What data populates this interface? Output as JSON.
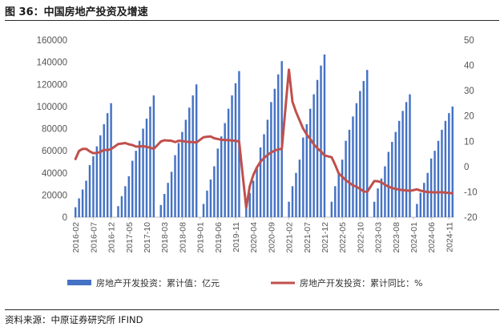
{
  "header": {
    "title": "图 36：中国房地产投资及增速"
  },
  "footer": {
    "source": "资料来源：中原证券研究所 IFIND"
  },
  "colors": {
    "bar": "#4472c4",
    "line": "#c0504d",
    "axis": "#bfbfbf",
    "text": "#595959"
  },
  "chart_data": {
    "type": "bar",
    "title": "中国房地产投资及增速",
    "y_left": {
      "min": 0,
      "max": 160000,
      "ticks": [
        0,
        20000,
        40000,
        60000,
        80000,
        100000,
        120000,
        140000,
        160000
      ]
    },
    "y_right": {
      "min": -20,
      "max": 50,
      "ticks": [
        -20,
        -10,
        0,
        10,
        20,
        30,
        40,
        50
      ]
    },
    "x_tick_labels": [
      "2016-02",
      "2016-07",
      "2016-12",
      "2017-05",
      "2017-10",
      "2018-03",
      "2018-08",
      "2019-01",
      "2019-06",
      "2019-11",
      "2020-04",
      "2020-09",
      "2021-02",
      "2021-07",
      "2021-12",
      "2022-05",
      "2022-10",
      "2023-03",
      "2023-08",
      "2024-01",
      "2024-06",
      "2024-11"
    ],
    "legend": [
      {
        "name": "房地产开发投资：累计值：亿元",
        "kind": "bar"
      },
      {
        "name": "房地产开发投资：累计同比：%",
        "kind": "line"
      }
    ],
    "series": [
      {
        "name": "房地产开发投资：累计值：亿元",
        "type": "bar",
        "axis": "left",
        "data": [
          {
            "month": "2016-02",
            "value": 9000
          },
          {
            "month": "2016-03",
            "value": 17000
          },
          {
            "month": "2016-04",
            "value": 25000
          },
          {
            "month": "2016-05",
            "value": 33000
          },
          {
            "month": "2016-06",
            "value": 47000
          },
          {
            "month": "2016-07",
            "value": 55000
          },
          {
            "month": "2016-08",
            "value": 64000
          },
          {
            "month": "2016-09",
            "value": 74000
          },
          {
            "month": "2016-10",
            "value": 84000
          },
          {
            "month": "2016-11",
            "value": 94000
          },
          {
            "month": "2016-12",
            "value": 103000
          },
          {
            "month": "2017-02",
            "value": 10000
          },
          {
            "month": "2017-03",
            "value": 19000
          },
          {
            "month": "2017-04",
            "value": 28000
          },
          {
            "month": "2017-05",
            "value": 37000
          },
          {
            "month": "2017-06",
            "value": 51000
          },
          {
            "month": "2017-07",
            "value": 60000
          },
          {
            "month": "2017-08",
            "value": 69000
          },
          {
            "month": "2017-09",
            "value": 80000
          },
          {
            "month": "2017-10",
            "value": 89000
          },
          {
            "month": "2017-11",
            "value": 100000
          },
          {
            "month": "2017-12",
            "value": 110000
          },
          {
            "month": "2018-02",
            "value": 11000
          },
          {
            "month": "2018-03",
            "value": 21000
          },
          {
            "month": "2018-04",
            "value": 31000
          },
          {
            "month": "2018-05",
            "value": 41000
          },
          {
            "month": "2018-06",
            "value": 56000
          },
          {
            "month": "2018-07",
            "value": 67000
          },
          {
            "month": "2018-08",
            "value": 77000
          },
          {
            "month": "2018-09",
            "value": 88000
          },
          {
            "month": "2018-10",
            "value": 99000
          },
          {
            "month": "2018-11",
            "value": 110000
          },
          {
            "month": "2018-12",
            "value": 120000
          },
          {
            "month": "2019-02",
            "value": 12000
          },
          {
            "month": "2019-03",
            "value": 24000
          },
          {
            "month": "2019-04",
            "value": 34000
          },
          {
            "month": "2019-05",
            "value": 46000
          },
          {
            "month": "2019-06",
            "value": 62000
          },
          {
            "month": "2019-07",
            "value": 73000
          },
          {
            "month": "2019-08",
            "value": 85000
          },
          {
            "month": "2019-09",
            "value": 98000
          },
          {
            "month": "2019-10",
            "value": 110000
          },
          {
            "month": "2019-11",
            "value": 121000
          },
          {
            "month": "2019-12",
            "value": 132000
          },
          {
            "month": "2020-02",
            "value": 10000
          },
          {
            "month": "2020-03",
            "value": 22000
          },
          {
            "month": "2020-04",
            "value": 33000
          },
          {
            "month": "2020-05",
            "value": 45000
          },
          {
            "month": "2020-06",
            "value": 63000
          },
          {
            "month": "2020-07",
            "value": 75000
          },
          {
            "month": "2020-08",
            "value": 88000
          },
          {
            "month": "2020-09",
            "value": 104000
          },
          {
            "month": "2020-10",
            "value": 116000
          },
          {
            "month": "2020-11",
            "value": 129000
          },
          {
            "month": "2020-12",
            "value": 141000
          },
          {
            "month": "2021-02",
            "value": 14000
          },
          {
            "month": "2021-03",
            "value": 28000
          },
          {
            "month": "2021-04",
            "value": 40000
          },
          {
            "month": "2021-05",
            "value": 52000
          },
          {
            "month": "2021-06",
            "value": 72000
          },
          {
            "month": "2021-07",
            "value": 84000
          },
          {
            "month": "2021-08",
            "value": 98000
          },
          {
            "month": "2021-09",
            "value": 111000
          },
          {
            "month": "2021-10",
            "value": 124000
          },
          {
            "month": "2021-11",
            "value": 137000
          },
          {
            "month": "2021-12",
            "value": 147000
          },
          {
            "month": "2022-02",
            "value": 14000
          },
          {
            "month": "2022-03",
            "value": 28000
          },
          {
            "month": "2022-04",
            "value": 40000
          },
          {
            "month": "2022-05",
            "value": 52000
          },
          {
            "month": "2022-06",
            "value": 69000
          },
          {
            "month": "2022-07",
            "value": 79000
          },
          {
            "month": "2022-08",
            "value": 91000
          },
          {
            "month": "2022-09",
            "value": 103000
          },
          {
            "month": "2022-10",
            "value": 114000
          },
          {
            "month": "2022-11",
            "value": 123000
          },
          {
            "month": "2022-12",
            "value": 133000
          },
          {
            "month": "2023-02",
            "value": 14000
          },
          {
            "month": "2023-03",
            "value": 26000
          },
          {
            "month": "2023-04",
            "value": 35000
          },
          {
            "month": "2023-05",
            "value": 46000
          },
          {
            "month": "2023-06",
            "value": 59000
          },
          {
            "month": "2023-07",
            "value": 68000
          },
          {
            "month": "2023-08",
            "value": 77000
          },
          {
            "month": "2023-09",
            "value": 87000
          },
          {
            "month": "2023-10",
            "value": 96000
          },
          {
            "month": "2023-11",
            "value": 104000
          },
          {
            "month": "2023-12",
            "value": 111000
          },
          {
            "month": "2024-02",
            "value": 12000
          },
          {
            "month": "2024-03",
            "value": 22000
          },
          {
            "month": "2024-04",
            "value": 31000
          },
          {
            "month": "2024-05",
            "value": 40000
          },
          {
            "month": "2024-06",
            "value": 53000
          },
          {
            "month": "2024-07",
            "value": 60000
          },
          {
            "month": "2024-08",
            "value": 69000
          },
          {
            "month": "2024-09",
            "value": 79000
          },
          {
            "month": "2024-10",
            "value": 87000
          },
          {
            "month": "2024-11",
            "value": 94000
          },
          {
            "month": "2024-12",
            "value": 100000
          }
        ]
      },
      {
        "name": "房地产开发投资：累计同比：%",
        "type": "line",
        "axis": "right",
        "data": [
          {
            "month": "2016-02",
            "value": 3
          },
          {
            "month": "2016-03",
            "value": 6.2
          },
          {
            "month": "2016-04",
            "value": 7
          },
          {
            "month": "2016-05",
            "value": 7
          },
          {
            "month": "2016-06",
            "value": 6
          },
          {
            "month": "2016-07",
            "value": 5.3
          },
          {
            "month": "2016-08",
            "value": 5.4
          },
          {
            "month": "2016-09",
            "value": 5.8
          },
          {
            "month": "2016-10",
            "value": 6.6
          },
          {
            "month": "2016-11",
            "value": 6.5
          },
          {
            "month": "2016-12",
            "value": 6.9
          },
          {
            "month": "2017-02",
            "value": 8.9
          },
          {
            "month": "2017-03",
            "value": 9.1
          },
          {
            "month": "2017-04",
            "value": 9.3
          },
          {
            "month": "2017-05",
            "value": 8.8
          },
          {
            "month": "2017-06",
            "value": 8.5
          },
          {
            "month": "2017-07",
            "value": 7.9
          },
          {
            "month": "2017-08",
            "value": 7.9
          },
          {
            "month": "2017-09",
            "value": 8.1
          },
          {
            "month": "2017-10",
            "value": 7.8
          },
          {
            "month": "2017-11",
            "value": 7.5
          },
          {
            "month": "2017-12",
            "value": 7
          },
          {
            "month": "2018-02",
            "value": 9.9
          },
          {
            "month": "2018-03",
            "value": 10.4
          },
          {
            "month": "2018-04",
            "value": 10.3
          },
          {
            "month": "2018-05",
            "value": 10.2
          },
          {
            "month": "2018-06",
            "value": 9.7
          },
          {
            "month": "2018-07",
            "value": 10.2
          },
          {
            "month": "2018-08",
            "value": 10.1
          },
          {
            "month": "2018-09",
            "value": 9.9
          },
          {
            "month": "2018-10",
            "value": 9.7
          },
          {
            "month": "2018-11",
            "value": 9.7
          },
          {
            "month": "2018-12",
            "value": 9.5
          },
          {
            "month": "2019-02",
            "value": 11.6
          },
          {
            "month": "2019-03",
            "value": 11.8
          },
          {
            "month": "2019-04",
            "value": 11.9
          },
          {
            "month": "2019-05",
            "value": 11.2
          },
          {
            "month": "2019-06",
            "value": 10.9
          },
          {
            "month": "2019-07",
            "value": 10.6
          },
          {
            "month": "2019-08",
            "value": 10.5
          },
          {
            "month": "2019-09",
            "value": 10.5
          },
          {
            "month": "2019-10",
            "value": 10.3
          },
          {
            "month": "2019-11",
            "value": 10.2
          },
          {
            "month": "2019-12",
            "value": 9.9
          },
          {
            "month": "2020-02",
            "value": -16.3
          },
          {
            "month": "2020-03",
            "value": -7.7
          },
          {
            "month": "2020-04",
            "value": -3.3
          },
          {
            "month": "2020-05",
            "value": -0.3
          },
          {
            "month": "2020-06",
            "value": 1.9
          },
          {
            "month": "2020-07",
            "value": 3.4
          },
          {
            "month": "2020-08",
            "value": 4.6
          },
          {
            "month": "2020-09",
            "value": 5.6
          },
          {
            "month": "2020-10",
            "value": 6.3
          },
          {
            "month": "2020-11",
            "value": 6.8
          },
          {
            "month": "2020-12",
            "value": 7
          },
          {
            "month": "2021-02",
            "value": 38.3
          },
          {
            "month": "2021-03",
            "value": 25.6
          },
          {
            "month": "2021-04",
            "value": 21.6
          },
          {
            "month": "2021-05",
            "value": 18.3
          },
          {
            "month": "2021-06",
            "value": 15
          },
          {
            "month": "2021-07",
            "value": 12.7
          },
          {
            "month": "2021-08",
            "value": 10.9
          },
          {
            "month": "2021-09",
            "value": 8.8
          },
          {
            "month": "2021-10",
            "value": 7.2
          },
          {
            "month": "2021-11",
            "value": 6
          },
          {
            "month": "2021-12",
            "value": 4.4
          },
          {
            "month": "2022-02",
            "value": 3.7
          },
          {
            "month": "2022-03",
            "value": 0.7
          },
          {
            "month": "2022-04",
            "value": -2.7
          },
          {
            "month": "2022-05",
            "value": -4
          },
          {
            "month": "2022-06",
            "value": -5.4
          },
          {
            "month": "2022-07",
            "value": -6.4
          },
          {
            "month": "2022-08",
            "value": -7.4
          },
          {
            "month": "2022-09",
            "value": -8
          },
          {
            "month": "2022-10",
            "value": -8.8
          },
          {
            "month": "2022-11",
            "value": -9.8
          },
          {
            "month": "2022-12",
            "value": -10
          },
          {
            "month": "2023-02",
            "value": -5.7
          },
          {
            "month": "2023-03",
            "value": -5.8
          },
          {
            "month": "2023-04",
            "value": -6.2
          },
          {
            "month": "2023-05",
            "value": -7.2
          },
          {
            "month": "2023-06",
            "value": -7.9
          },
          {
            "month": "2023-07",
            "value": -8.5
          },
          {
            "month": "2023-08",
            "value": -8.8
          },
          {
            "month": "2023-09",
            "value": -9.1
          },
          {
            "month": "2023-10",
            "value": -9.3
          },
          {
            "month": "2023-11",
            "value": -9.4
          },
          {
            "month": "2023-12",
            "value": -9.6
          },
          {
            "month": "2024-02",
            "value": -9
          },
          {
            "month": "2024-03",
            "value": -9.5
          },
          {
            "month": "2024-04",
            "value": -9.8
          },
          {
            "month": "2024-05",
            "value": -10.1
          },
          {
            "month": "2024-06",
            "value": -10.1
          },
          {
            "month": "2024-07",
            "value": -10.2
          },
          {
            "month": "2024-08",
            "value": -10.2
          },
          {
            "month": "2024-09",
            "value": -10.1
          },
          {
            "month": "2024-10",
            "value": -10.3
          },
          {
            "month": "2024-11",
            "value": -10.4
          },
          {
            "month": "2024-12",
            "value": -10.6
          }
        ]
      }
    ]
  }
}
